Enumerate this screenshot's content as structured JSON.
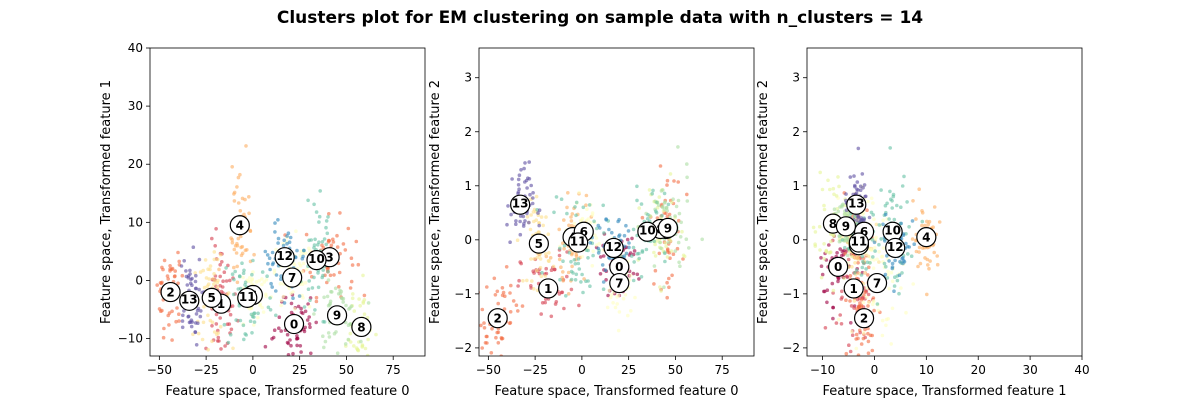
{
  "chart_data": {
    "title": "Clusters plot for EM clustering on sample data with n_clusters = 14",
    "type": "scatter",
    "n_clusters": 14,
    "colormap": "Spectral",
    "grid": false,
    "legend": "none",
    "panels": [
      {
        "xlabel": "Feature space, Transformed feature 0",
        "ylabel": "Feature space, Transformed feature 1",
        "xlim": [
          -55,
          92
        ],
        "ylim": [
          -13,
          40
        ],
        "xticks": [
          -50,
          -25,
          0,
          25,
          50,
          75
        ],
        "yticks": [
          -10,
          0,
          10,
          20,
          30,
          40
        ],
        "centers": [
          {
            "label": "0",
            "x": 22,
            "y": -7.5
          },
          {
            "label": "1",
            "x": -17,
            "y": -4
          },
          {
            "label": "2",
            "x": -44,
            "y": -2
          },
          {
            "label": "3",
            "x": 41,
            "y": 4
          },
          {
            "label": "4",
            "x": -7,
            "y": 9.5
          },
          {
            "label": "5",
            "x": -22,
            "y": -3
          },
          {
            "label": "6",
            "x": 0,
            "y": -2.5
          },
          {
            "label": "7",
            "x": 21,
            "y": 0.5
          },
          {
            "label": "8",
            "x": 58,
            "y": -8
          },
          {
            "label": "9",
            "x": 45,
            "y": -6
          },
          {
            "label": "10",
            "x": 34,
            "y": 3.5
          },
          {
            "label": "11",
            "x": -3,
            "y": -3
          },
          {
            "label": "12",
            "x": 17,
            "y": 4
          },
          {
            "label": "13",
            "x": -34,
            "y": -3.5
          }
        ]
      },
      {
        "xlabel": "Feature space, Transformed feature 0",
        "ylabel": "Feature space, Transformed feature 2",
        "xlim": [
          -55,
          92
        ],
        "ylim": [
          -2.15,
          3.55
        ],
        "xticks": [
          -50,
          -25,
          0,
          25,
          50,
          75
        ],
        "yticks": [
          -2,
          -1,
          0,
          1,
          2,
          3
        ],
        "centers": [
          {
            "label": "0",
            "x": 20,
            "y": -0.5
          },
          {
            "label": "1",
            "x": -18,
            "y": -0.9
          },
          {
            "label": "2",
            "x": -45,
            "y": -1.45
          },
          {
            "label": "3",
            "x": 45,
            "y": 0.2
          },
          {
            "label": "4",
            "x": -5,
            "y": 0.05
          },
          {
            "label": "5",
            "x": -23,
            "y": -0.07
          },
          {
            "label": "6",
            "x": 1,
            "y": 0.15
          },
          {
            "label": "7",
            "x": 20,
            "y": -0.8
          },
          {
            "label": "8",
            "x": 42,
            "y": 0.2
          },
          {
            "label": "9",
            "x": 46,
            "y": 0.22
          },
          {
            "label": "10",
            "x": 35,
            "y": 0.15
          },
          {
            "label": "11",
            "x": -2,
            "y": -0.05
          },
          {
            "label": "12",
            "x": 17,
            "y": -0.15
          },
          {
            "label": "13",
            "x": -33,
            "y": 0.65
          }
        ]
      },
      {
        "xlabel": "Feature space, Transformed feature 1",
        "ylabel": "Feature space, Transformed feature 2",
        "xlim": [
          -13,
          40
        ],
        "ylim": [
          -2.15,
          3.55
        ],
        "xticks": [
          -10,
          0,
          10,
          20,
          30,
          40
        ],
        "yticks": [
          -2,
          -1,
          0,
          1,
          2,
          3
        ],
        "centers": [
          {
            "label": "0",
            "x": -7,
            "y": -0.5
          },
          {
            "label": "1",
            "x": -4,
            "y": -0.9
          },
          {
            "label": "2",
            "x": -2,
            "y": -1.45
          },
          {
            "label": "3",
            "x": -3,
            "y": -0.07
          },
          {
            "label": "4",
            "x": 10,
            "y": 0.05
          },
          {
            "label": "5",
            "x": -3,
            "y": -0.1
          },
          {
            "label": "6",
            "x": -2,
            "y": 0.15
          },
          {
            "label": "7",
            "x": 0.5,
            "y": -0.8
          },
          {
            "label": "8",
            "x": -8,
            "y": 0.3
          },
          {
            "label": "9",
            "x": -5.5,
            "y": 0.25
          },
          {
            "label": "10",
            "x": 3.5,
            "y": 0.15
          },
          {
            "label": "11",
            "x": -3,
            "y": -0.05
          },
          {
            "label": "12",
            "x": 4,
            "y": -0.15
          },
          {
            "label": "13",
            "x": -3.5,
            "y": 0.65
          }
        ]
      }
    ]
  }
}
